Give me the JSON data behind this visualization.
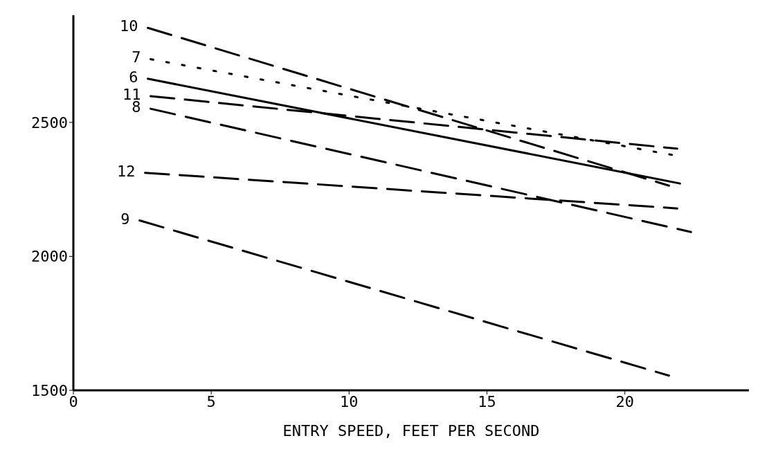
{
  "chart_data": {
    "type": "line",
    "xlabel": "ENTRY SPEED, FEET PER SECOND",
    "xlim": [
      0,
      24.5
    ],
    "xticks": [
      0,
      5,
      10,
      15,
      20
    ],
    "ylim": [
      1500,
      2900
    ],
    "yticks": [
      1500,
      2000,
      2500
    ],
    "grid": false,
    "marker": "none",
    "series": [
      {
        "name": "10",
        "color": "#000000",
        "line_style": "dashed",
        "x": [
          2.7,
          21.6
        ],
        "values": [
          2853,
          2264
        ]
      },
      {
        "name": "7",
        "color": "#000000",
        "line_style": "dotted",
        "x": [
          2.8,
          21.8
        ],
        "values": [
          2736,
          2377
        ]
      },
      {
        "name": "6",
        "color": "#000000",
        "line_style": "solid",
        "x": [
          2.7,
          22.0
        ],
        "values": [
          2663,
          2272
        ]
      },
      {
        "name": "11",
        "color": "#000000",
        "line_style": "dashed",
        "x": [
          2.8,
          21.9
        ],
        "values": [
          2598,
          2402
        ]
      },
      {
        "name": "8",
        "color": "#000000",
        "line_style": "dashed",
        "x": [
          2.8,
          22.4
        ],
        "values": [
          2551,
          2091
        ]
      },
      {
        "name": "12",
        "color": "#000000",
        "line_style": "dashed",
        "x": [
          2.6,
          21.9
        ],
        "values": [
          2312,
          2179
        ]
      },
      {
        "name": "9",
        "color": "#000000",
        "line_style": "dashed",
        "x": [
          2.4,
          21.6
        ],
        "values": [
          2134,
          1555
        ]
      }
    ]
  }
}
